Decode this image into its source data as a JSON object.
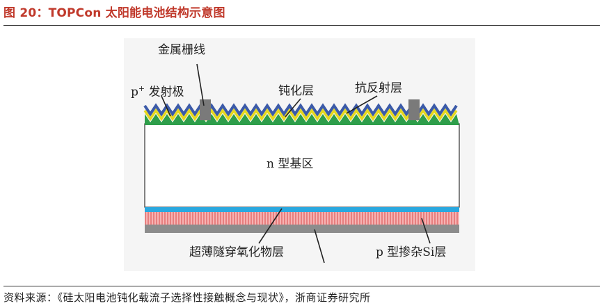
{
  "caption": "图 20：TOPCon 太阳能电池结构示意图",
  "source": "资料来源：《硅太阳电池钝化载流子选择性接触概念与现状》，浙商证券研究所",
  "labels": {
    "metal_grid": "金属栅线",
    "p_plus": "p",
    "p_plus_sup": "+",
    "emitter": "发射极",
    "passivation": "钝化层",
    "anti_reflection": "抗反射层",
    "n_base": "n 型基区",
    "tunnel_oxide": "超薄隧穿氧化物层",
    "p_doped_si": "p 型掺杂Si层"
  },
  "colors": {
    "caption_red": "#c0392b",
    "anti_reflection_blue": "#3b5aa8",
    "passivation_yellow": "#e6d81e",
    "emitter_green": "#2e9e4a",
    "metal_grey": "#7a7a7a",
    "oxide_blue": "#29a8e0",
    "doped_si_red": "#e77f7f",
    "rear_grey": "#8c8c8c"
  }
}
